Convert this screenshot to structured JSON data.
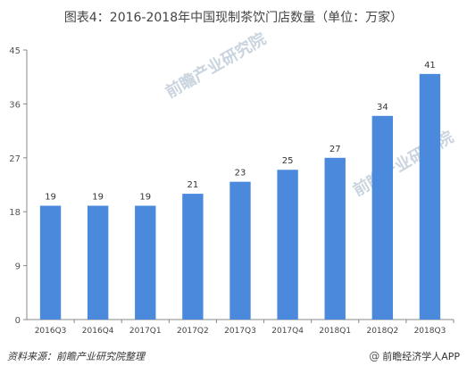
{
  "chart_data": {
    "type": "bar",
    "title": "图表4：2016-2018年中国现制茶饮门店数量（单位：万家）",
    "categories": [
      "2016Q3",
      "2016Q4",
      "2017Q1",
      "2017Q2",
      "2017Q3",
      "2017Q4",
      "2018Q1",
      "2018Q2",
      "2018Q3"
    ],
    "values": [
      19,
      19,
      19,
      21,
      23,
      25,
      27,
      34,
      41
    ],
    "data_labels": [
      "19",
      "19",
      "19",
      "21",
      "23",
      "25",
      "27",
      "34",
      "41"
    ],
    "ylim": [
      0,
      45
    ],
    "yticks": [
      0,
      9,
      18,
      27,
      36,
      45
    ],
    "bar_color": "#4a89dc",
    "grid": false,
    "legend": "none"
  },
  "source": "资料来源：前瞻产业研究院整理",
  "watermark": {
    "center": "前瞻产业研究院",
    "bottom": "前瞻经济学人APP"
  },
  "icons": {
    "at": "at-icon"
  }
}
